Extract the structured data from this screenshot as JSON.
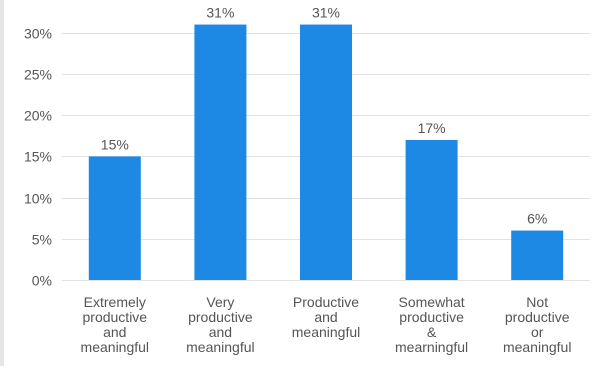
{
  "chart_data": {
    "type": "bar",
    "title": "",
    "xlabel": "",
    "ylabel": "",
    "categories": [
      [
        "Extremely",
        "productive",
        "and",
        "meaningful"
      ],
      [
        "Very",
        "productive",
        "and",
        "meaningful"
      ],
      [
        "Productive",
        "and",
        "meaningful"
      ],
      [
        "Somewhat",
        "productive",
        "&",
        "mearningful"
      ],
      [
        "Not",
        "productive",
        "or",
        "meaningful"
      ]
    ],
    "values": [
      15,
      31,
      31,
      17,
      6
    ],
    "data_labels": [
      "15%",
      "31%",
      "31%",
      "17%",
      "6%"
    ],
    "ylim": [
      0,
      33
    ],
    "yticks": [
      0,
      5,
      10,
      15,
      20,
      25,
      30
    ],
    "ytick_labels": [
      "0%",
      "5%",
      "10%",
      "15%",
      "20%",
      "25%",
      "30%"
    ],
    "grid": true,
    "legend": "none",
    "colors": {
      "bar": "#1e88e5",
      "grid": "#e3e3e3",
      "text": "#555555"
    }
  }
}
